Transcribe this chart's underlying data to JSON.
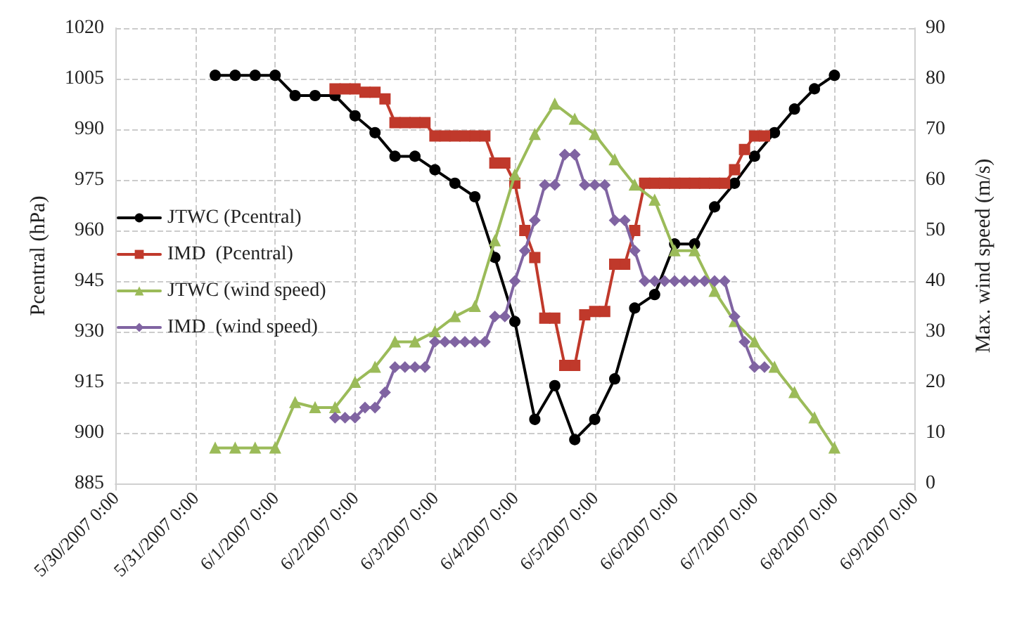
{
  "chart_data": {
    "type": "line",
    "xlim": [
      "2007-05-30",
      "2007-06-09"
    ],
    "xticks": [
      {
        "value": "2007-05-30",
        "label": "5/30/2007 0:00"
      },
      {
        "value": "2007-05-31",
        "label": "5/31/2007 0:00"
      },
      {
        "value": "2007-06-01",
        "label": "6/1/2007 0:00"
      },
      {
        "value": "2007-06-02",
        "label": "6/2/2007 0:00"
      },
      {
        "value": "2007-06-03",
        "label": "6/3/2007 0:00"
      },
      {
        "value": "2007-06-04",
        "label": "6/4/2007 0:00"
      },
      {
        "value": "2007-06-05",
        "label": "6/5/2007 0:00"
      },
      {
        "value": "2007-06-06",
        "label": "6/6/2007 0:00"
      },
      {
        "value": "2007-06-07",
        "label": "6/7/2007 0:00"
      },
      {
        "value": "2007-06-08",
        "label": "6/8/2007 0:00"
      },
      {
        "value": "2007-06-09",
        "label": "6/9/2007 0:00"
      }
    ],
    "ylabel": "Pcentral (hPa)",
    "y2label": "Max. wind speed (m/s)",
    "ylim": [
      885,
      1020
    ],
    "yticks": [
      885,
      900,
      915,
      930,
      945,
      960,
      975,
      990,
      1005,
      1020
    ],
    "y2lim": [
      0,
      90
    ],
    "y2ticks": [
      0,
      10,
      20,
      30,
      40,
      50,
      60,
      70,
      80,
      90
    ],
    "grid": true,
    "legend": "left",
    "line_style": "solid",
    "series": [
      {
        "name": "JTWC (Pcentral)",
        "color": "#000000",
        "marker": "circle",
        "x": [
          "2007-05-31T06:00",
          "2007-05-31T12:00",
          "2007-05-31T18:00",
          "2007-06-01T00:00",
          "2007-06-01T06:00",
          "2007-06-01T12:00",
          "2007-06-01T18:00",
          "2007-06-02T00:00",
          "2007-06-02T06:00",
          "2007-06-02T12:00",
          "2007-06-02T18:00",
          "2007-06-03T00:00",
          "2007-06-03T06:00",
          "2007-06-03T12:00",
          "2007-06-03T18:00",
          "2007-06-04T00:00",
          "2007-06-04T06:00",
          "2007-06-04T12:00",
          "2007-06-04T18:00",
          "2007-06-05T00:00",
          "2007-06-05T06:00",
          "2007-06-05T12:00",
          "2007-06-05T18:00",
          "2007-06-06T00:00",
          "2007-06-06T06:00",
          "2007-06-06T12:00",
          "2007-06-06T18:00",
          "2007-06-07T00:00",
          "2007-06-07T06:00",
          "2007-06-07T12:00",
          "2007-06-07T18:00",
          "2007-06-08T00:00"
        ],
        "values": [
          1006,
          1006,
          1006,
          1006,
          1000,
          1000,
          1000,
          994,
          989,
          982,
          982,
          978,
          974,
          970,
          952,
          933,
          904,
          914,
          898,
          904,
          916,
          937,
          941,
          956,
          956,
          967,
          974,
          982,
          989,
          996,
          1002,
          1006
        ]
      },
      {
        "name": "IMD  (Pcentral)",
        "color": "#c0392b",
        "marker": "square",
        "x": [
          "2007-06-01T18:00",
          "2007-06-01T21:00",
          "2007-06-02T00:00",
          "2007-06-02T03:00",
          "2007-06-02T06:00",
          "2007-06-02T09:00",
          "2007-06-02T12:00",
          "2007-06-02T15:00",
          "2007-06-02T18:00",
          "2007-06-02T21:00",
          "2007-06-03T00:00",
          "2007-06-03T03:00",
          "2007-06-03T06:00",
          "2007-06-03T09:00",
          "2007-06-03T12:00",
          "2007-06-03T15:00",
          "2007-06-03T18:00",
          "2007-06-03T21:00",
          "2007-06-04T00:00",
          "2007-06-04T03:00",
          "2007-06-04T06:00",
          "2007-06-04T09:00",
          "2007-06-04T12:00",
          "2007-06-04T15:00",
          "2007-06-04T18:00",
          "2007-06-04T21:00",
          "2007-06-05T00:00",
          "2007-06-05T03:00",
          "2007-06-05T06:00",
          "2007-06-05T09:00",
          "2007-06-05T12:00",
          "2007-06-05T15:00",
          "2007-06-05T18:00",
          "2007-06-05T21:00",
          "2007-06-06T00:00",
          "2007-06-06T03:00",
          "2007-06-06T06:00",
          "2007-06-06T09:00",
          "2007-06-06T12:00",
          "2007-06-06T15:00",
          "2007-06-06T18:00",
          "2007-06-06T21:00",
          "2007-06-07T00:00",
          "2007-06-07T03:00"
        ],
        "values": [
          1002,
          1002,
          1002,
          1001,
          1001,
          999,
          992,
          992,
          992,
          992,
          988,
          988,
          988,
          988,
          988,
          988,
          980,
          980,
          974,
          960,
          952,
          934,
          934,
          920,
          920,
          935,
          936,
          936,
          950,
          950,
          960,
          974,
          974,
          974,
          974,
          974,
          974,
          974,
          974,
          974,
          978,
          984,
          988,
          988
        ]
      },
      {
        "name": "JTWC (wind speed)",
        "color": "#9bbb59",
        "marker": "triangle",
        "axis": "y2",
        "x": [
          "2007-05-31T06:00",
          "2007-05-31T12:00",
          "2007-05-31T18:00",
          "2007-06-01T00:00",
          "2007-06-01T06:00",
          "2007-06-01T12:00",
          "2007-06-01T18:00",
          "2007-06-02T00:00",
          "2007-06-02T06:00",
          "2007-06-02T12:00",
          "2007-06-02T18:00",
          "2007-06-03T00:00",
          "2007-06-03T06:00",
          "2007-06-03T12:00",
          "2007-06-03T18:00",
          "2007-06-04T00:00",
          "2007-06-04T06:00",
          "2007-06-04T12:00",
          "2007-06-04T18:00",
          "2007-06-05T00:00",
          "2007-06-05T06:00",
          "2007-06-05T12:00",
          "2007-06-05T18:00",
          "2007-06-06T00:00",
          "2007-06-06T06:00",
          "2007-06-06T12:00",
          "2007-06-06T18:00",
          "2007-06-07T00:00",
          "2007-06-07T06:00",
          "2007-06-07T12:00",
          "2007-06-07T18:00",
          "2007-06-08T00:00"
        ],
        "values": [
          7,
          7,
          7,
          7,
          16,
          15,
          15,
          20,
          23,
          28,
          28,
          30,
          33,
          35,
          48,
          61,
          69,
          75,
          72,
          69,
          64,
          59,
          56,
          46,
          46,
          38,
          32,
          28,
          23,
          18,
          13,
          7
        ]
      },
      {
        "name": "IMD  (wind speed)",
        "color": "#8064a2",
        "marker": "diamond",
        "axis": "y2",
        "x": [
          "2007-06-01T18:00",
          "2007-06-01T21:00",
          "2007-06-02T00:00",
          "2007-06-02T03:00",
          "2007-06-02T06:00",
          "2007-06-02T09:00",
          "2007-06-02T12:00",
          "2007-06-02T15:00",
          "2007-06-02T18:00",
          "2007-06-02T21:00",
          "2007-06-03T00:00",
          "2007-06-03T03:00",
          "2007-06-03T06:00",
          "2007-06-03T09:00",
          "2007-06-03T12:00",
          "2007-06-03T15:00",
          "2007-06-03T18:00",
          "2007-06-03T21:00",
          "2007-06-04T00:00",
          "2007-06-04T03:00",
          "2007-06-04T06:00",
          "2007-06-04T09:00",
          "2007-06-04T12:00",
          "2007-06-04T15:00",
          "2007-06-04T18:00",
          "2007-06-04T21:00",
          "2007-06-05T00:00",
          "2007-06-05T03:00",
          "2007-06-05T06:00",
          "2007-06-05T09:00",
          "2007-06-05T12:00",
          "2007-06-05T15:00",
          "2007-06-05T18:00",
          "2007-06-05T21:00",
          "2007-06-06T00:00",
          "2007-06-06T03:00",
          "2007-06-06T06:00",
          "2007-06-06T09:00",
          "2007-06-06T12:00",
          "2007-06-06T15:00",
          "2007-06-06T18:00",
          "2007-06-06T21:00",
          "2007-06-07T00:00",
          "2007-06-07T03:00"
        ],
        "values": [
          13,
          13,
          13,
          15,
          15,
          18,
          23,
          23,
          23,
          23,
          28,
          28,
          28,
          28,
          28,
          28,
          33,
          33,
          40,
          46,
          52,
          59,
          59,
          65,
          65,
          59,
          59,
          59,
          52,
          52,
          46,
          40,
          40,
          40,
          40,
          40,
          40,
          40,
          40,
          40,
          33,
          28,
          23,
          23
        ]
      }
    ]
  }
}
